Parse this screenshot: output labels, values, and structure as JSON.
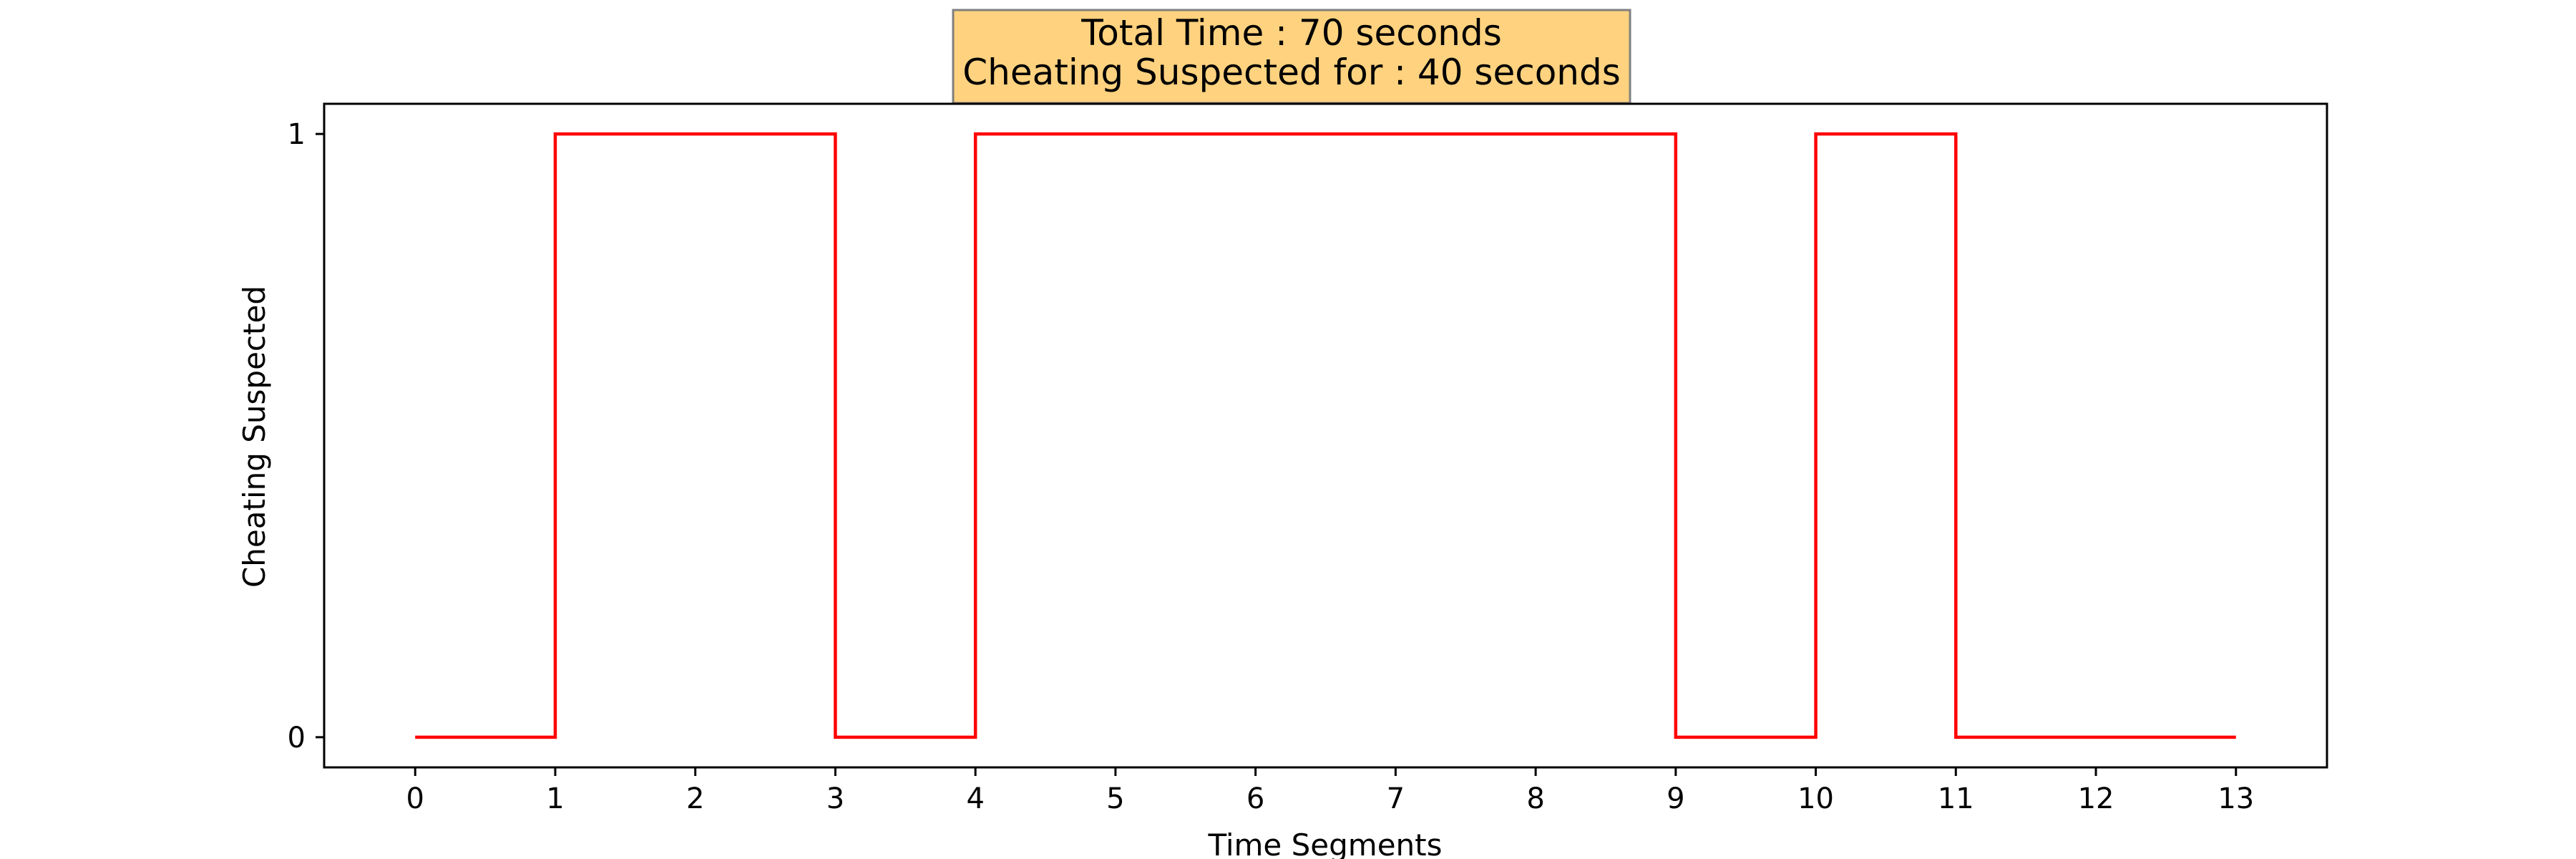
{
  "chart_data": {
    "type": "line",
    "step": "post",
    "title_lines": [
      "Total Time : 70 seconds",
      "Cheating Suspected for : 40 seconds"
    ],
    "xlabel": "Time Segments",
    "ylabel": "Cheating Suspected",
    "xlim": [
      -0.65,
      13.65
    ],
    "ylim": [
      -0.05,
      1.05
    ],
    "xticks": [
      0,
      1,
      2,
      3,
      4,
      5,
      6,
      7,
      8,
      9,
      10,
      11,
      12,
      13
    ],
    "yticks": [
      0,
      1
    ],
    "series": [
      {
        "x": [
          0,
          1,
          2,
          3,
          4,
          5,
          6,
          7,
          8,
          9,
          10,
          11,
          12,
          13
        ],
        "y": [
          0,
          1,
          1,
          0,
          1,
          1,
          1,
          1,
          1,
          0,
          1,
          0,
          0,
          0
        ],
        "color": "#ff0000"
      }
    ],
    "title_box_color": "#ffd27f",
    "grid": false,
    "legend": false
  }
}
